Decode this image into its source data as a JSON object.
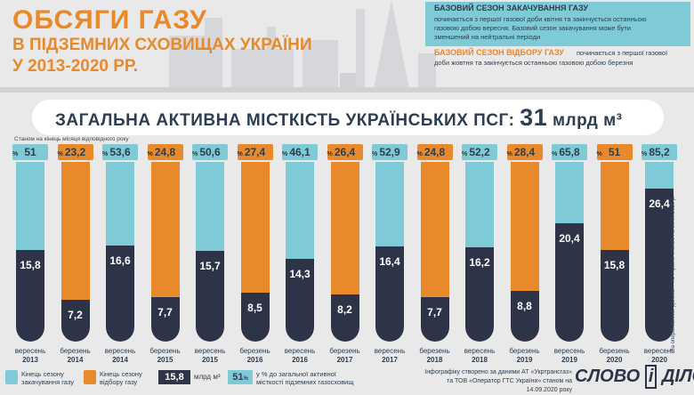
{
  "title": {
    "line1": "ОБСЯГИ ГАЗУ",
    "line2": "В ПІДЗЕМНИХ СХОВИЩАХ УКРАЇНИ",
    "line3": "У 2013-2020 РР."
  },
  "info": {
    "injection_title": "БАЗОВИЙ СЕЗОН ЗАКАЧУВАННЯ ГАЗУ",
    "injection_line1": "починається з першої газової доби квітня та закінчується останньою",
    "injection_line2": "газовою добою вересня. Базовий сезон закачування може бути",
    "injection_line3": "зменшений на нейтральні періоди",
    "withdrawal_title": "БАЗОВИЙ СЕЗОН ВІДБОРУ ГАЗУ",
    "withdrawal_line1": "починається з першої газової",
    "withdrawal_line2": "доби жовтня та закінчується останньою газовою добою березня"
  },
  "banner": {
    "label": "ЗАГАЛЬНА АКТИВНА МІСТКІСТЬ УКРАЇНСЬКИХ ПСГ:",
    "value": "31",
    "unit": "млрд м³"
  },
  "state_note": "Станом на кінець місяця відповідного року",
  "colors": {
    "injection": "#7ecad6",
    "withdrawal": "#e8892b",
    "gas": "#2e3448",
    "title": "#e8892b"
  },
  "chart_data": {
    "type": "bar",
    "capacity": 31,
    "unit": "млрд м³",
    "categories": [
      "вересень 2013",
      "березень 2014",
      "вересень 2014",
      "березень 2015",
      "вересень 2015",
      "березень 2016",
      "вересень 2016",
      "березень 2017",
      "вересень 2017",
      "березень 2018",
      "вересень 2018",
      "березень 2019",
      "вересень 2019",
      "березень 2020",
      "вересень 2020"
    ],
    "series": [
      {
        "values": [
          15.8,
          7.2,
          16.6,
          7.7,
          15.7,
          8.5,
          14.3,
          8.2,
          16.4,
          7.7,
          16.2,
          8.8,
          20.4,
          15.8,
          26.4
        ]
      },
      {
        "values": [
          51,
          23.2,
          53.6,
          24.8,
          50.6,
          27.4,
          46.1,
          26.4,
          52.9,
          24.8,
          52.2,
          28.4,
          65.8,
          51,
          85.2
        ]
      }
    ],
    "value_labels": [
      "15,8",
      "7,2",
      "16,6",
      "7,7",
      "15,7",
      "8,5",
      "14,3",
      "8,2",
      "16,4",
      "7,7",
      "16,2",
      "8,8",
      "20,4",
      "15,8",
      "26,4"
    ],
    "pct_labels": [
      "51",
      "23,2",
      "53,6",
      "24,8",
      "50,6",
      "27,4",
      "46,1",
      "26,4",
      "52,9",
      "24,8",
      "52,2",
      "28,4",
      "65,8",
      "51",
      "85,2"
    ],
    "season": [
      "injection",
      "withdrawal",
      "injection",
      "withdrawal",
      "injection",
      "withdrawal",
      "injection",
      "withdrawal",
      "injection",
      "withdrawal",
      "injection",
      "withdrawal",
      "injection",
      "withdrawal",
      "injection"
    ],
    "months": [
      "вересень",
      "березень",
      "вересень",
      "березень",
      "вересень",
      "березень",
      "вересень",
      "березень",
      "вересень",
      "березень",
      "вересень",
      "березень",
      "вересень",
      "березень",
      "вересень"
    ],
    "years": [
      "2013",
      "2014",
      "2014",
      "2015",
      "2015",
      "2016",
      "2016",
      "2017",
      "2017",
      "2018",
      "2018",
      "2019",
      "2019",
      "2020",
      "2020"
    ],
    "pct_sign": "%"
  },
  "legend": {
    "injection_label_1": "Кінець сезону",
    "injection_label_2": "закачування газу",
    "withdrawal_label_1": "Кінець сезону",
    "withdrawal_label_2": "відбору газу",
    "volume_sample": "15,8",
    "volume_unit": "млрд м³",
    "pct_sample": "51",
    "pct_sign": "%",
    "pct_label_1": "у % до загальної активної",
    "pct_label_2": "місткості підземних газосховищ"
  },
  "credit": {
    "line1": "Інфографіку створено за даними АТ «Укртрансгаз»",
    "line2": "та ТОВ «Оператор ГТС України» станом на 14.09.2020 року"
  },
  "logo": {
    "part1": "СЛОВО",
    "part2": "і",
    "part3": "ДІЛО"
  },
  "source_note": "За оперативними даними ГТС України станом на 09.09.2020 р."
}
